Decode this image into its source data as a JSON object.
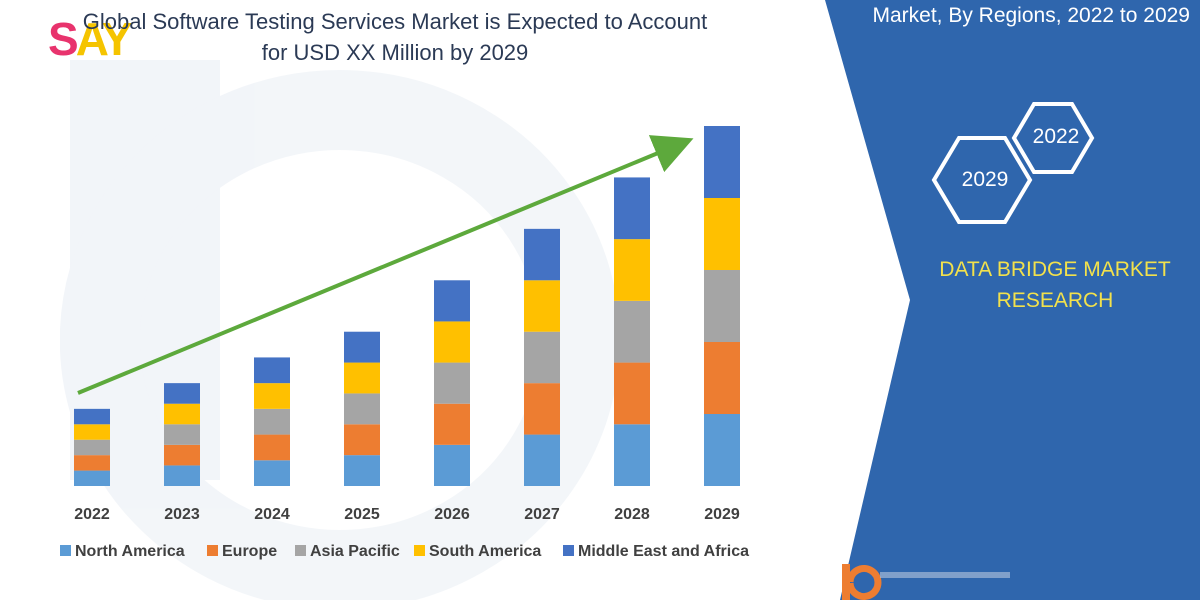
{
  "logo_text": {
    "s": "S",
    "ay": "AY"
  },
  "header": {
    "title_line1": "Global Software Testing Services Market is Expected to Account",
    "title_line2": "for USD XX Million by 2029",
    "side_title": "Market, By Regions, 2022 to 2029"
  },
  "badges": {
    "hex_a": "2022",
    "hex_b": "2029"
  },
  "brand": {
    "line1": "DATA BRIDGE MARKET",
    "line2": "RESEARCH"
  },
  "colors": {
    "panel_blue": "#2f66ad",
    "brand_yellow": "#f2e14c",
    "trend_arrow": "#5da93c",
    "title_text": "#2b3a55"
  },
  "chart_data": {
    "type": "bar",
    "stacked": true,
    "categories": [
      "2022",
      "2023",
      "2024",
      "2025",
      "2026",
      "2027",
      "2028",
      "2029"
    ],
    "series": [
      {
        "name": "North America",
        "color": "#5b9bd5",
        "values": [
          3,
          4,
          5,
          6,
          8,
          10,
          12,
          14
        ]
      },
      {
        "name": "Europe",
        "color": "#ed7d31",
        "values": [
          3,
          4,
          5,
          6,
          8,
          10,
          12,
          14
        ]
      },
      {
        "name": "Asia Pacific",
        "color": "#a5a5a5",
        "values": [
          3,
          4,
          5,
          6,
          8,
          10,
          12,
          14
        ]
      },
      {
        "name": "South America",
        "color": "#ffc000",
        "values": [
          3,
          4,
          5,
          6,
          8,
          10,
          12,
          14
        ]
      },
      {
        "name": "Middle East and Africa",
        "color": "#4472c4",
        "values": [
          3,
          4,
          5,
          6,
          8,
          10,
          12,
          14
        ]
      }
    ],
    "ylim": [
      0,
      70
    ],
    "grid": false,
    "legend": "bottom",
    "trend_arrow": true
  }
}
